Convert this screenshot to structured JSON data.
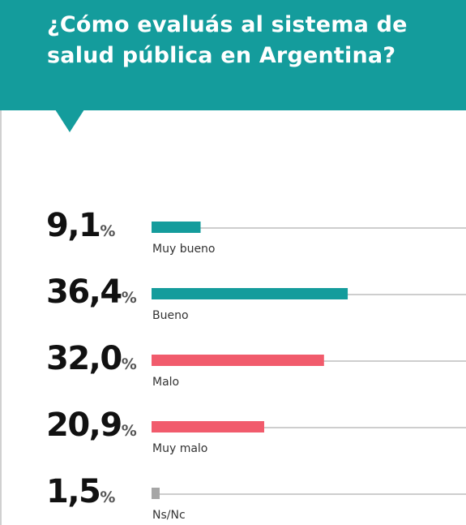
{
  "header": {
    "title_line1": "¿Cómo evaluás al sistema de",
    "title_line2": "salud pública en Argentina?",
    "background_color": "#149c9c"
  },
  "chart_data": {
    "type": "bar",
    "orientation": "horizontal",
    "title": "¿Cómo evaluás al sistema de salud pública en Argentina?",
    "unit": "%",
    "xlim": [
      0,
      100
    ],
    "categories": [
      "Muy bueno",
      "Bueno",
      "Malo",
      "Muy malo",
      "Ns/Nc"
    ],
    "values": [
      9.1,
      36.4,
      32.0,
      20.9,
      1.5
    ],
    "value_labels": [
      "9,1",
      "36,4",
      "32,0",
      "20,9",
      "1,5"
    ],
    "bar_colors": [
      "#149c9c",
      "#149c9c",
      "#f15b6c",
      "#f15b6c",
      "#a6a6a6"
    ],
    "track_color": "#bdbdbd"
  }
}
